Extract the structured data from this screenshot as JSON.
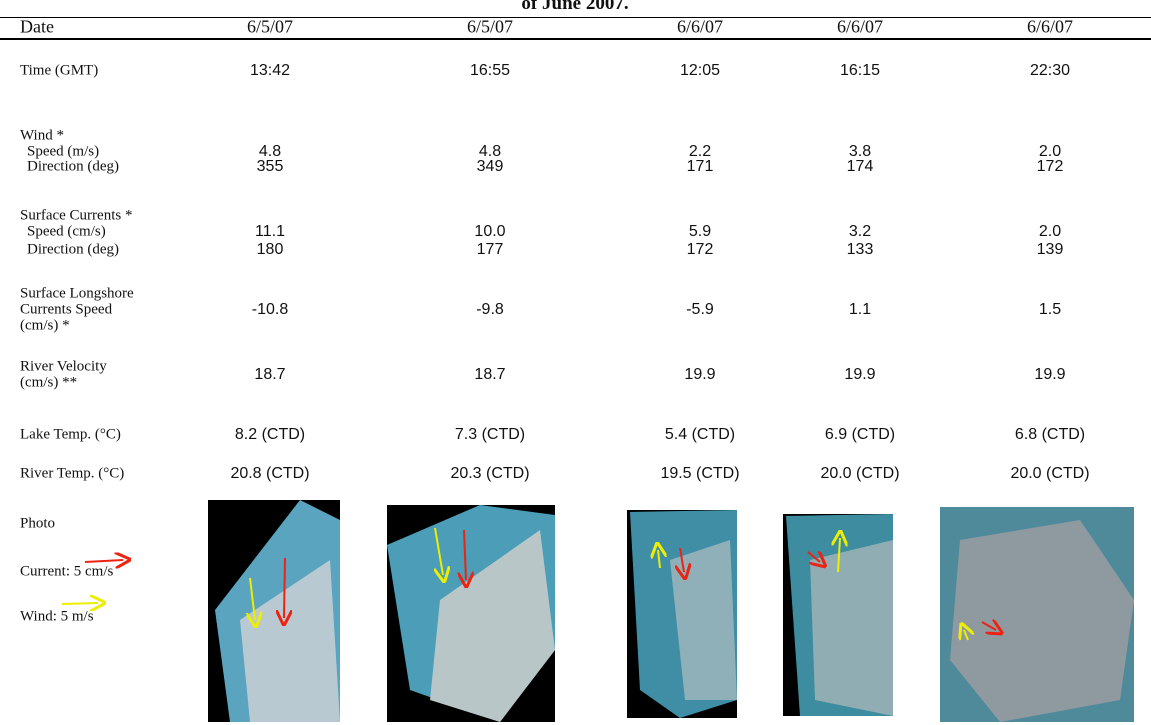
{
  "title": "of June 2007.",
  "table": {
    "header": [
      "Date",
      "6/5/07",
      "6/5/07",
      "6/6/07",
      "6/6/07",
      "6/6/07"
    ],
    "rows": [
      {
        "label": "Time (GMT)",
        "values": [
          "13:42",
          "16:55",
          "12:05",
          "16:15",
          "22:30"
        ]
      },
      {
        "label": "Wind *",
        "subrows": [
          {
            "label": "Speed (m/s)",
            "values": [
              "4.8",
              "4.8",
              "2.2",
              "3.8",
              "2.0"
            ]
          },
          {
            "label": "Direction (deg)",
            "values": [
              "355",
              "349",
              "171",
              "174",
              "172"
            ]
          }
        ]
      },
      {
        "label": "Surface Currents *",
        "subrows": [
          {
            "label": "Speed (cm/s)",
            "values": [
              "11.1",
              "10.0",
              "5.9",
              "3.2",
              "2.0"
            ]
          },
          {
            "label": "Direction (deg)",
            "values": [
              "180",
              "177",
              "172",
              "133",
              "139"
            ]
          }
        ]
      },
      {
        "label": [
          "Surface Longshore",
          "Currents Speed",
          "(cm/s) *"
        ],
        "values": [
          "-10.8",
          "-9.8",
          "-5.9",
          "1.1",
          "1.5"
        ]
      },
      {
        "label": [
          "River Velocity",
          "(cm/s) **"
        ],
        "values": [
          "18.7",
          "18.7",
          "19.9",
          "19.9",
          "19.9"
        ]
      },
      {
        "label": "Lake Temp. (°C)",
        "values": [
          "8.2 (CTD)",
          "7.3 (CTD)",
          "5.4 (CTD)",
          "6.9 (CTD)",
          "6.8 (CTD)"
        ]
      },
      {
        "label": "River Temp. (°C)",
        "values": [
          "20.8 (CTD)",
          "20.3 (CTD)",
          "19.5 (CTD)",
          "20.0 (CTD)",
          "20.0 (CTD)"
        ]
      }
    ],
    "photo": {
      "label": "Photo",
      "current_legend": "Current: 5 cm/s",
      "wind_legend": "Wind: 5 m/s"
    }
  }
}
